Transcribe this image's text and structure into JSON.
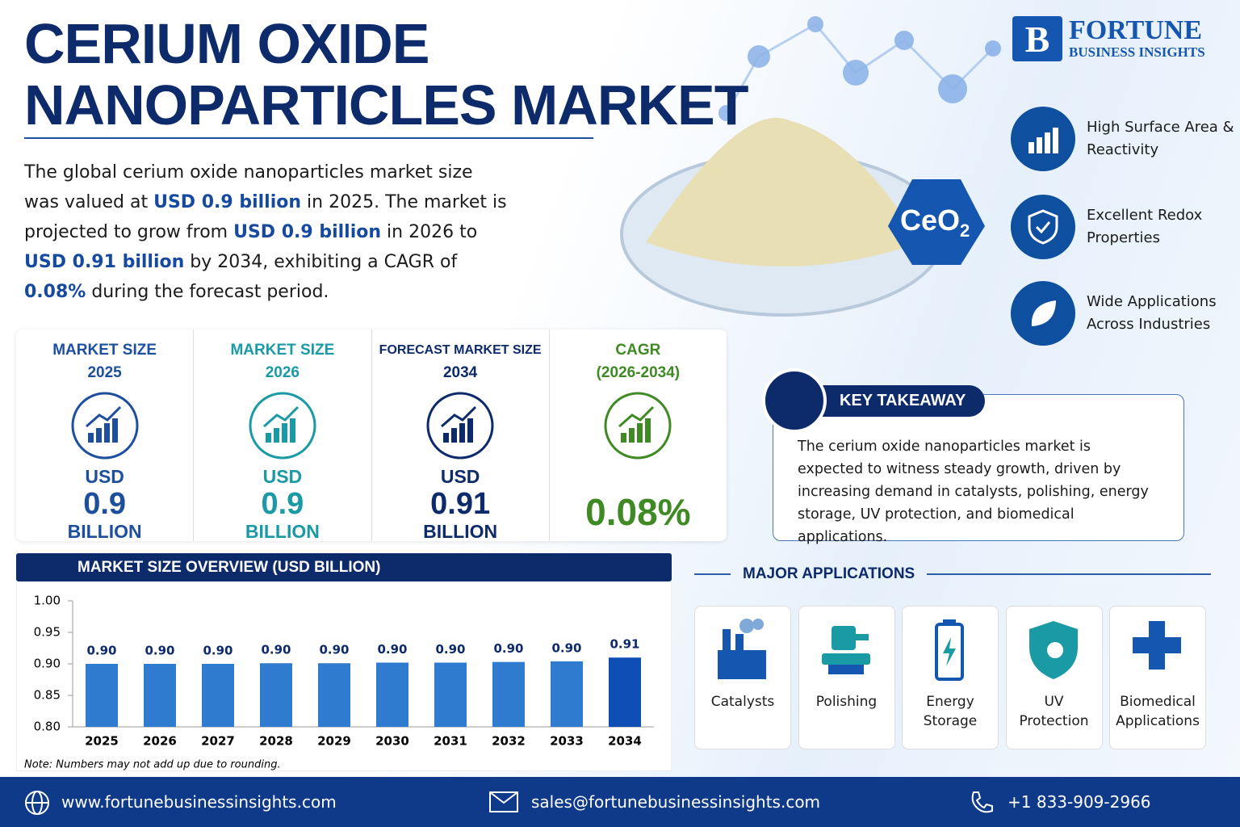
{
  "header": {
    "title_lines": [
      "CERIUM OXIDE",
      "NANOPARTICLES MARKET"
    ],
    "logo": {
      "name": "FORTUNE",
      "tagline": "BUSINESS INSIGHTS"
    }
  },
  "summary": [
    {
      "text": "The global cerium oxide nanoparticles market size was valued at ",
      "highlight": false
    },
    {
      "text": "USD 0.9 billion",
      "highlight": true
    },
    {
      "text": " in 2025. The market is projected to grow from ",
      "highlight": false
    },
    {
      "text": "USD 0.9 billion",
      "highlight": true
    },
    {
      "text": " in 2026 to ",
      "highlight": false
    },
    {
      "text": "USD 0.91 billion",
      "highlight": true
    },
    {
      "text": " by 2034, exhibiting a CAGR of ",
      "highlight": false
    },
    {
      "text": "0.08%",
      "highlight": true
    },
    {
      "text": " during the forecast period.",
      "highlight": false
    }
  ],
  "badge": {
    "text": "CeO",
    "subscript": "2"
  },
  "features": [
    "High Surface Area & Reactivity",
    "Excellent Redox Properties",
    "Wide Applications Across Industries"
  ],
  "stats": [
    {
      "label": "MARKET SIZE",
      "period": "2025",
      "prefix": "USD",
      "value": "0.9",
      "unit": "BILLION",
      "color": "#1d4f9e",
      "label_color": "#1d4f9e"
    },
    {
      "label": "MARKET SIZE",
      "period": "2026",
      "prefix": "USD",
      "value": "0.9",
      "unit": "BILLION",
      "color": "#1a9aa5",
      "label_color": "#1a9aa5"
    },
    {
      "label": "FORECAST MARKET SIZE",
      "period": "2034",
      "prefix": "USD",
      "value": "0.91",
      "unit": "BILLION",
      "color": "#0d2a6b",
      "label_color": "#0d2a6b"
    },
    {
      "label": "CAGR",
      "period": "(2026-2034)",
      "value": "0.08%",
      "color": "#3f8a24",
      "label_color": "#3f8a24"
    }
  ],
  "key_takeaway": {
    "title": "KEY TAKEAWAY",
    "text": "The cerium oxide nanoparticles market is expected to witness steady growth, driven by increasing demand in catalysts, polishing, energy storage, UV protection, and biomedical applications."
  },
  "applications": {
    "title": "MAJOR APPLICATIONS",
    "items": [
      "Catalysts",
      "Polishing",
      "Energy Storage",
      "UV Protection",
      "Biomedical Applications"
    ]
  },
  "chart_data": {
    "type": "bar",
    "title": "MARKET SIZE OVERVIEW (USD BILLION)",
    "categories": [
      "2025",
      "2026",
      "2027",
      "2028",
      "2029",
      "2030",
      "2031",
      "2032",
      "2033",
      "2034"
    ],
    "values": [
      0.9,
      0.9,
      0.9,
      0.901,
      0.901,
      0.902,
      0.902,
      0.903,
      0.904,
      0.91
    ],
    "value_labels": [
      "0.90",
      "0.90",
      "0.90",
      "0.90",
      "0.90",
      "0.90",
      "0.90",
      "0.90",
      "0.90",
      "0.91"
    ],
    "colors": [
      "#2f7bd0",
      "#2f7bd0",
      "#2f7bd0",
      "#2f7bd0",
      "#2f7bd0",
      "#2f7bd0",
      "#2f7bd0",
      "#2f7bd0",
      "#2f7bd0",
      "#0f4fb5"
    ],
    "ylim": [
      0.8,
      1.0
    ],
    "yticks": [
      {
        "value": 0.8,
        "label": "0.80"
      },
      {
        "value": 0.85,
        "label": "0.85"
      },
      {
        "value": 0.9,
        "label": "0.90"
      },
      {
        "value": 0.95,
        "label": "0.95"
      },
      {
        "value": 1.0,
        "label": "1.00"
      }
    ],
    "note": "Note: Numbers may not add up due to rounding."
  },
  "footer": {
    "website": "www.fortunebusinessinsights.com",
    "email": "sales@fortunebusinessinsights.com",
    "phone": "+1 833-909-2966"
  }
}
